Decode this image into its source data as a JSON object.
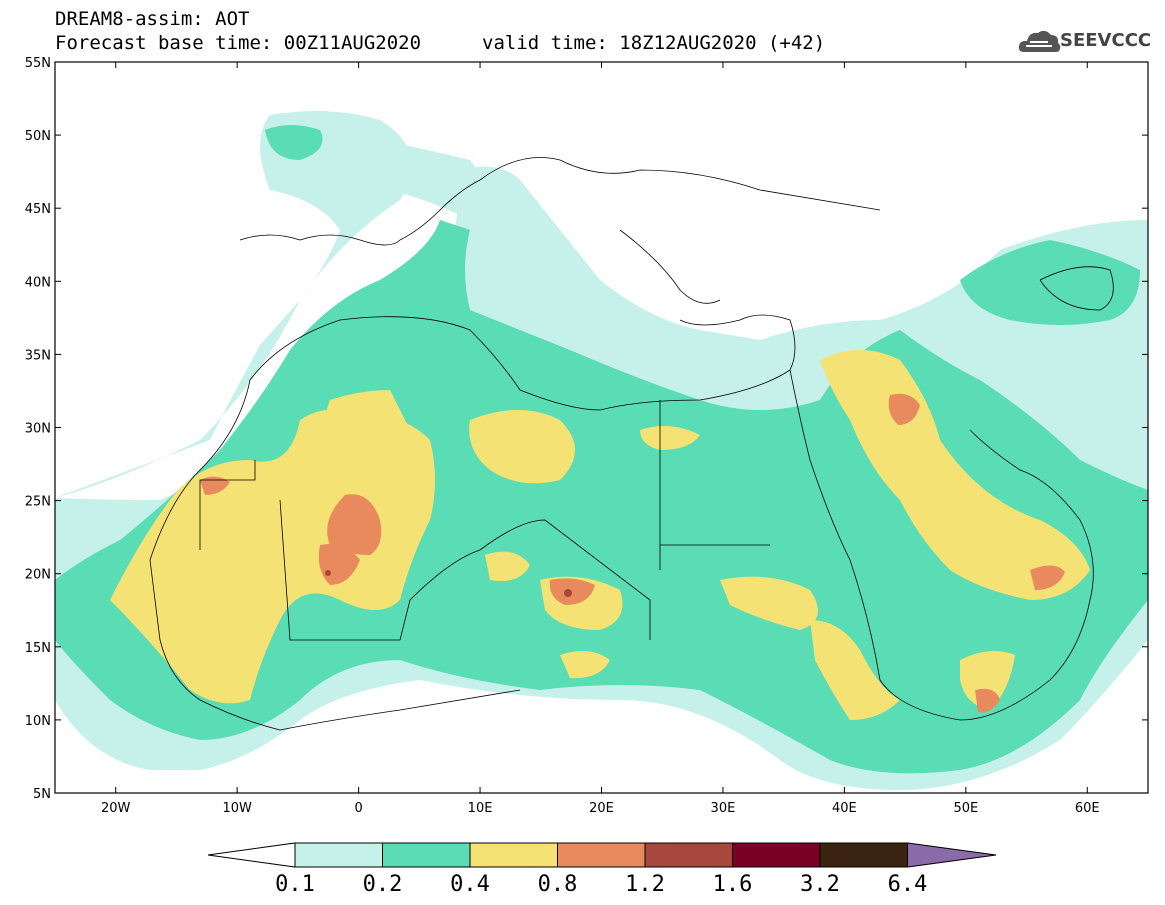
{
  "header": {
    "title": "DREAM8-assim: AOT",
    "base_time": "Forecast base time: 00Z11AUG2020",
    "valid_time": "valid time: 18Z12AUG2020 (+42)"
  },
  "logo": {
    "text": "SEEVCCC",
    "icon": "cloud-icon"
  },
  "map": {
    "projection": "lat-lon",
    "lon_range": [
      -25,
      65
    ],
    "lat_range": [
      5,
      55
    ],
    "lat_labels": [
      "5N",
      "10N",
      "15N",
      "20N",
      "25N",
      "30N",
      "35N",
      "40N",
      "45N",
      "50N",
      "55N"
    ],
    "lon_labels": [
      "20W",
      "10W",
      "0",
      "10E",
      "20E",
      "30E",
      "40E",
      "50E",
      "60E"
    ]
  },
  "colorbar": {
    "labels": [
      "0.1",
      "0.2",
      "0.4",
      "0.8",
      "1.2",
      "1.6",
      "3.2",
      "6.4"
    ],
    "colors": [
      "#ffffff",
      "#c6f0ea",
      "#5adcb4",
      "#f5e274",
      "#e88a5e",
      "#a8473d",
      "#7a0025",
      "#3b2512",
      "#8b6aa9"
    ]
  }
}
